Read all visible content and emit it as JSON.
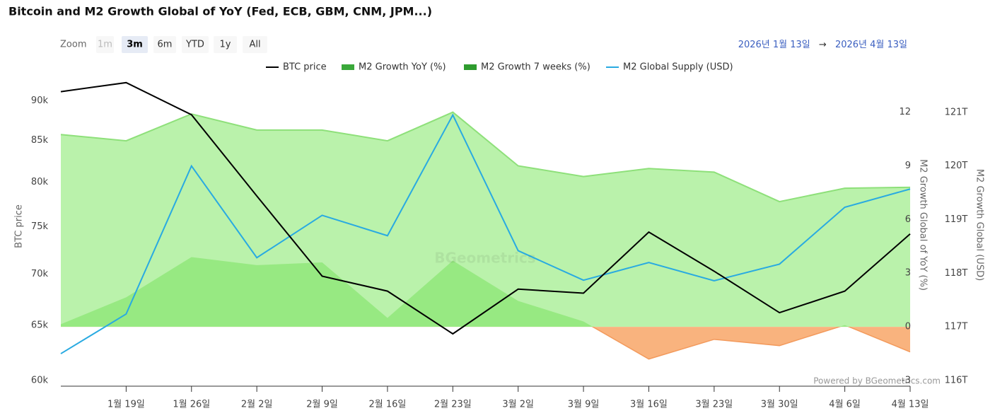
{
  "chart_data": {
    "type": "line",
    "title": "Bitcoin and M2 Growth Global of YoY (Fed, ECB, GBM, CNM, JPM...)",
    "range_selector": {
      "label": "Zoom",
      "buttons": [
        "1m",
        "3m",
        "6m",
        "YTD",
        "1y",
        "All"
      ],
      "selected": 1,
      "disabled": [
        0
      ]
    },
    "date_range": {
      "from": "2026년 1월 13일",
      "separator": "→",
      "to": "2026년 4월 13일"
    },
    "categories": [
      null,
      "1월 19일",
      "1월 26일",
      "2월 2일",
      "2월 9일",
      "2월 16일",
      "2월 23일",
      "3월 2일",
      "3월 9일",
      "3월 16일",
      "3월 23일",
      "3월 30일",
      "4월 6일",
      "4월 13일"
    ],
    "series": [
      {
        "name": "M2 Growth YoY (%)",
        "type": "area",
        "axis": "y2",
        "color": "#aef09c",
        "line_color": "#8ee07a",
        "values": [
          10.75,
          10.4,
          11.9,
          11.0,
          11.0,
          10.4,
          12.0,
          9.0,
          8.4,
          8.85,
          8.65,
          7.0,
          7.75,
          7.8
        ]
      },
      {
        "name": "M2 Growth 7 weeks (%)",
        "type": "area",
        "axis": "y2",
        "color": "#90e87a",
        "negative_color": "#f9b37e",
        "line_color": "#f39a5c",
        "values": [
          0.15,
          1.65,
          3.9,
          3.45,
          3.6,
          0.5,
          3.7,
          1.45,
          0.3,
          -1.8,
          -0.7,
          -1.05,
          0.1,
          -1.4
        ]
      },
      {
        "name": "M2 Global Supply (USD)",
        "type": "line",
        "axis": "y3",
        "color": "#29aae1",
        "values": [
          116.5,
          117.24,
          120.0,
          118.29,
          119.08,
          118.7,
          120.95,
          118.42,
          117.87,
          118.2,
          117.86,
          118.17,
          119.23,
          119.57
        ]
      },
      {
        "name": "BTC price",
        "type": "line",
        "axis": "y",
        "color": "#000000",
        "values": [
          91200,
          92400,
          88200,
          78400,
          69800,
          68300,
          64200,
          68500,
          68100,
          74400,
          70300,
          66200,
          68300,
          74200
        ]
      }
    ],
    "legend_order": [
      3,
      0,
      1,
      2
    ],
    "ylabel": "BTC price",
    "ylog": true,
    "ylim": [
      60000,
      93240
    ],
    "yticks": [
      {
        "value": 60000,
        "label": "60k"
      },
      {
        "value": 65000,
        "label": "65k"
      },
      {
        "value": 70000,
        "label": "70k"
      },
      {
        "value": 75000,
        "label": "75k"
      },
      {
        "value": 80000,
        "label": "80k"
      },
      {
        "value": 85000,
        "label": "85k"
      },
      {
        "value": 90000,
        "label": "90k"
      }
    ],
    "y2label": "M2 Growth Global of YoY (%)",
    "y2lim": [
      -3,
      14
    ],
    "y2ticks": [
      -3,
      0,
      3,
      6,
      9,
      12
    ],
    "y3label": "M2 Growth Global (USD)",
    "y3lim": [
      116,
      121.67
    ],
    "y3ticks": [
      {
        "value": 116,
        "label": "116T"
      },
      {
        "value": 117,
        "label": "117T"
      },
      {
        "value": 118,
        "label": "118T"
      },
      {
        "value": 119,
        "label": "119T"
      },
      {
        "value": 120,
        "label": "120T"
      },
      {
        "value": 121,
        "label": "121T"
      }
    ],
    "watermark": "BGeometrics",
    "credits": "Powered by BGeometrics.com"
  }
}
